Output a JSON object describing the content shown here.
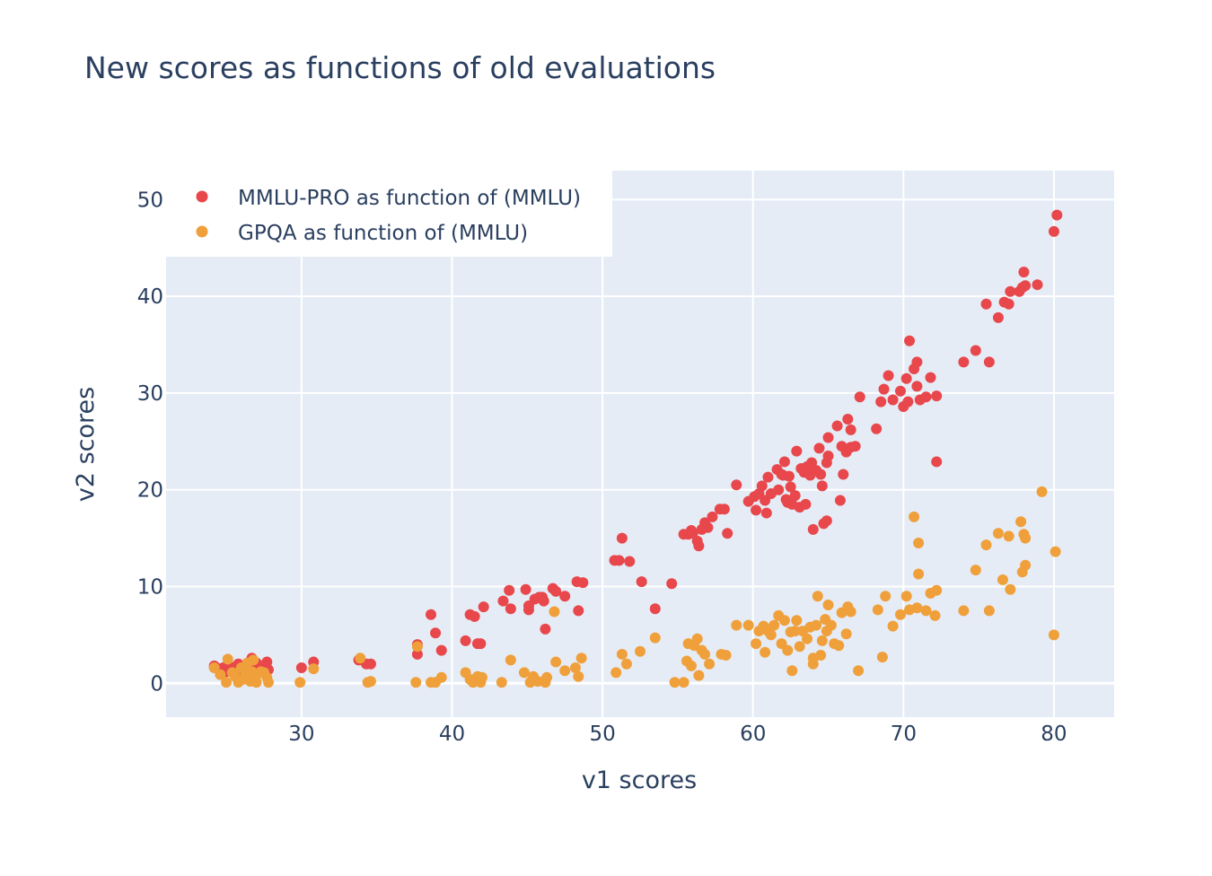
{
  "chart_data": {
    "type": "scatter",
    "title": "New scores as functions of old evaluations",
    "xlabel": "v1 scores",
    "ylabel": "v2 scores",
    "xlim": [
      21,
      84
    ],
    "ylim": [
      -3.5,
      53
    ],
    "xticks": [
      30,
      40,
      50,
      60,
      70,
      80
    ],
    "yticks": [
      0,
      10,
      20,
      30,
      40,
      50
    ],
    "grid": true,
    "legend_position": "top-left",
    "series": [
      {
        "name": "MMLU-PRO as function of (MMLU)",
        "color": "#e8474b",
        "points": [
          [
            24.2,
            1.8
          ],
          [
            24.6,
            1.5
          ],
          [
            24.8,
            1.6
          ],
          [
            25.0,
            1.2
          ],
          [
            25.1,
            1.9
          ],
          [
            25.3,
            1.4
          ],
          [
            25.6,
            1.7
          ],
          [
            25.8,
            2.0
          ],
          [
            26.0,
            1.3
          ],
          [
            26.2,
            1.6
          ],
          [
            26.4,
            1.9
          ],
          [
            26.6,
            2.3
          ],
          [
            26.7,
            2.6
          ],
          [
            26.8,
            1.5
          ],
          [
            27.0,
            2.1
          ],
          [
            27.2,
            1.8
          ],
          [
            27.5,
            1.4
          ],
          [
            27.7,
            2.2
          ],
          [
            27.8,
            1.4
          ],
          [
            30.0,
            1.6
          ],
          [
            30.8,
            2.2
          ],
          [
            33.8,
            2.4
          ],
          [
            34.3,
            2.0
          ],
          [
            34.6,
            2.0
          ],
          [
            37.7,
            4.0
          ],
          [
            37.7,
            3.0
          ],
          [
            38.6,
            7.1
          ],
          [
            38.9,
            5.2
          ],
          [
            39.3,
            3.4
          ],
          [
            40.9,
            4.4
          ],
          [
            41.2,
            7.1
          ],
          [
            41.5,
            6.9
          ],
          [
            41.7,
            4.1
          ],
          [
            41.9,
            4.1
          ],
          [
            42.1,
            7.9
          ],
          [
            43.4,
            8.5
          ],
          [
            43.8,
            9.6
          ],
          [
            43.9,
            7.7
          ],
          [
            44.9,
            9.7
          ],
          [
            45.1,
            7.6
          ],
          [
            45.1,
            8.0
          ],
          [
            45.5,
            8.7
          ],
          [
            45.8,
            8.9
          ],
          [
            46.0,
            8.9
          ],
          [
            46.1,
            8.5
          ],
          [
            46.2,
            5.6
          ],
          [
            46.7,
            9.8
          ],
          [
            46.9,
            9.5
          ],
          [
            47.5,
            9.0
          ],
          [
            48.3,
            10.5
          ],
          [
            48.4,
            7.5
          ],
          [
            48.7,
            10.4
          ],
          [
            50.8,
            12.7
          ],
          [
            51.1,
            12.7
          ],
          [
            51.3,
            15.0
          ],
          [
            51.8,
            12.6
          ],
          [
            52.6,
            10.5
          ],
          [
            53.5,
            7.7
          ],
          [
            54.6,
            10.3
          ],
          [
            55.4,
            15.4
          ],
          [
            55.7,
            15.4
          ],
          [
            55.9,
            15.8
          ],
          [
            56.0,
            15.5
          ],
          [
            56.3,
            14.7
          ],
          [
            56.4,
            14.2
          ],
          [
            56.6,
            15.9
          ],
          [
            56.8,
            16.6
          ],
          [
            57.0,
            16.1
          ],
          [
            57.3,
            17.2
          ],
          [
            57.8,
            18.0
          ],
          [
            58.1,
            18.0
          ],
          [
            58.3,
            15.5
          ],
          [
            58.9,
            20.5
          ],
          [
            59.7,
            18.8
          ],
          [
            60.1,
            19.3
          ],
          [
            60.2,
            17.9
          ],
          [
            60.4,
            19.6
          ],
          [
            60.6,
            20.4
          ],
          [
            60.8,
            18.9
          ],
          [
            60.9,
            17.6
          ],
          [
            61.0,
            21.3
          ],
          [
            61.2,
            19.6
          ],
          [
            61.6,
            22.1
          ],
          [
            61.7,
            20.0
          ],
          [
            61.9,
            21.6
          ],
          [
            62.0,
            21.5
          ],
          [
            62.1,
            22.9
          ],
          [
            62.2,
            19.0
          ],
          [
            62.3,
            18.7
          ],
          [
            62.4,
            21.4
          ],
          [
            62.5,
            20.3
          ],
          [
            62.6,
            18.5
          ],
          [
            62.8,
            19.4
          ],
          [
            62.9,
            24.0
          ],
          [
            63.1,
            18.2
          ],
          [
            63.2,
            22.2
          ],
          [
            63.4,
            21.8
          ],
          [
            63.5,
            18.5
          ],
          [
            63.6,
            22.4
          ],
          [
            63.8,
            21.5
          ],
          [
            63.9,
            22.8
          ],
          [
            64.0,
            15.9
          ],
          [
            64.2,
            22.0
          ],
          [
            64.4,
            24.3
          ],
          [
            64.5,
            21.6
          ],
          [
            64.6,
            20.4
          ],
          [
            64.7,
            16.5
          ],
          [
            64.9,
            16.8
          ],
          [
            64.9,
            22.8
          ],
          [
            65.0,
            23.5
          ],
          [
            65.0,
            25.4
          ],
          [
            65.6,
            26.6
          ],
          [
            65.8,
            18.9
          ],
          [
            65.9,
            24.5
          ],
          [
            66.0,
            21.6
          ],
          [
            66.2,
            23.9
          ],
          [
            66.3,
            27.3
          ],
          [
            66.5,
            24.4
          ],
          [
            66.5,
            26.2
          ],
          [
            66.8,
            24.5
          ],
          [
            67.1,
            29.6
          ],
          [
            68.2,
            26.3
          ],
          [
            68.5,
            29.1
          ],
          [
            68.7,
            30.4
          ],
          [
            69.0,
            31.8
          ],
          [
            69.3,
            29.3
          ],
          [
            69.8,
            30.2
          ],
          [
            70.0,
            28.6
          ],
          [
            70.2,
            31.5
          ],
          [
            70.3,
            29.1
          ],
          [
            70.4,
            35.4
          ],
          [
            70.7,
            32.5
          ],
          [
            70.9,
            33.2
          ],
          [
            70.9,
            30.7
          ],
          [
            71.1,
            29.3
          ],
          [
            71.5,
            29.6
          ],
          [
            71.8,
            31.6
          ],
          [
            72.2,
            22.9
          ],
          [
            72.2,
            29.7
          ],
          [
            74.0,
            33.2
          ],
          [
            74.8,
            34.4
          ],
          [
            75.5,
            39.2
          ],
          [
            75.7,
            33.2
          ],
          [
            76.3,
            37.8
          ],
          [
            76.7,
            39.4
          ],
          [
            77.0,
            39.2
          ],
          [
            77.1,
            40.5
          ],
          [
            77.7,
            40.5
          ],
          [
            77.9,
            40.9
          ],
          [
            78.0,
            42.5
          ],
          [
            78.1,
            41.1
          ],
          [
            78.9,
            41.2
          ],
          [
            80.0,
            46.7
          ],
          [
            80.2,
            48.4
          ]
        ]
      },
      {
        "name": "GPQA as function of (MMLU)",
        "color": "#f0a03b",
        "points": [
          [
            24.2,
            1.6
          ],
          [
            24.6,
            0.9
          ],
          [
            25.0,
            0.1
          ],
          [
            25.1,
            2.5
          ],
          [
            25.4,
            1.1
          ],
          [
            25.6,
            0.7
          ],
          [
            25.8,
            0.1
          ],
          [
            26.0,
            1.6
          ],
          [
            26.1,
            0.4
          ],
          [
            26.3,
            1.0
          ],
          [
            26.4,
            2.1
          ],
          [
            26.6,
            0.2
          ],
          [
            26.7,
            1.2
          ],
          [
            26.8,
            2.4
          ],
          [
            26.9,
            0.5
          ],
          [
            27.0,
            0.1
          ],
          [
            27.1,
            1.0
          ],
          [
            27.3,
            1.2
          ],
          [
            27.5,
            1.1
          ],
          [
            27.7,
            0.6
          ],
          [
            27.8,
            0.1
          ],
          [
            29.9,
            0.1
          ],
          [
            30.8,
            1.5
          ],
          [
            33.9,
            2.6
          ],
          [
            34.4,
            0.1
          ],
          [
            34.6,
            0.2
          ],
          [
            37.6,
            0.1
          ],
          [
            37.7,
            3.8
          ],
          [
            38.6,
            0.1
          ],
          [
            38.9,
            0.1
          ],
          [
            39.3,
            0.6
          ],
          [
            40.9,
            1.1
          ],
          [
            41.2,
            0.4
          ],
          [
            41.4,
            0.1
          ],
          [
            41.7,
            0.7
          ],
          [
            41.9,
            0.1
          ],
          [
            42.0,
            0.6
          ],
          [
            43.3,
            0.1
          ],
          [
            43.9,
            2.4
          ],
          [
            44.8,
            1.1
          ],
          [
            45.2,
            0.1
          ],
          [
            45.4,
            0.7
          ],
          [
            45.7,
            0.2
          ],
          [
            46.2,
            0.1
          ],
          [
            46.3,
            0.6
          ],
          [
            46.8,
            7.4
          ],
          [
            46.9,
            2.2
          ],
          [
            47.5,
            1.3
          ],
          [
            48.2,
            1.6
          ],
          [
            48.4,
            0.7
          ],
          [
            48.6,
            2.6
          ],
          [
            50.9,
            1.1
          ],
          [
            51.3,
            3.0
          ],
          [
            51.6,
            2.0
          ],
          [
            52.5,
            3.3
          ],
          [
            53.5,
            4.7
          ],
          [
            54.8,
            0.1
          ],
          [
            55.4,
            0.1
          ],
          [
            55.6,
            2.3
          ],
          [
            55.7,
            4.1
          ],
          [
            55.9,
            1.8
          ],
          [
            56.1,
            3.9
          ],
          [
            56.3,
            4.6
          ],
          [
            56.4,
            0.8
          ],
          [
            56.6,
            3.4
          ],
          [
            56.8,
            3.0
          ],
          [
            57.1,
            2.0
          ],
          [
            57.9,
            3.0
          ],
          [
            58.2,
            2.9
          ],
          [
            58.9,
            6.0
          ],
          [
            59.7,
            6.0
          ],
          [
            60.2,
            4.1
          ],
          [
            60.4,
            5.4
          ],
          [
            60.7,
            5.9
          ],
          [
            60.8,
            3.2
          ],
          [
            61.0,
            5.4
          ],
          [
            61.2,
            5.0
          ],
          [
            61.4,
            6.0
          ],
          [
            61.7,
            7.0
          ],
          [
            61.9,
            4.1
          ],
          [
            62.1,
            6.5
          ],
          [
            62.3,
            3.4
          ],
          [
            62.5,
            5.3
          ],
          [
            62.6,
            1.3
          ],
          [
            62.8,
            5.4
          ],
          [
            62.9,
            6.5
          ],
          [
            63.1,
            3.8
          ],
          [
            63.3,
            5.4
          ],
          [
            63.6,
            4.6
          ],
          [
            63.8,
            5.8
          ],
          [
            64.0,
            2.6
          ],
          [
            64.0,
            2.0
          ],
          [
            64.2,
            6.0
          ],
          [
            64.3,
            9.0
          ],
          [
            64.5,
            2.9
          ],
          [
            64.6,
            4.4
          ],
          [
            64.8,
            6.6
          ],
          [
            64.9,
            5.4
          ],
          [
            65.0,
            8.1
          ],
          [
            65.2,
            6.0
          ],
          [
            65.4,
            4.1
          ],
          [
            65.7,
            3.9
          ],
          [
            65.9,
            7.3
          ],
          [
            66.2,
            5.1
          ],
          [
            66.3,
            7.9
          ],
          [
            66.5,
            7.4
          ],
          [
            67.0,
            1.3
          ],
          [
            68.3,
            7.6
          ],
          [
            68.6,
            2.7
          ],
          [
            68.8,
            9.0
          ],
          [
            69.3,
            5.9
          ],
          [
            69.8,
            7.1
          ],
          [
            70.2,
            9.0
          ],
          [
            70.4,
            7.6
          ],
          [
            70.7,
            17.2
          ],
          [
            70.9,
            7.8
          ],
          [
            71.0,
            14.5
          ],
          [
            71.0,
            11.3
          ],
          [
            71.5,
            7.5
          ],
          [
            71.8,
            9.3
          ],
          [
            72.2,
            9.6
          ],
          [
            72.1,
            7.0
          ],
          [
            74.0,
            7.5
          ],
          [
            74.8,
            11.7
          ],
          [
            75.5,
            14.3
          ],
          [
            75.7,
            7.5
          ],
          [
            76.3,
            15.5
          ],
          [
            76.6,
            10.7
          ],
          [
            77.0,
            15.2
          ],
          [
            77.1,
            9.7
          ],
          [
            77.8,
            16.7
          ],
          [
            77.9,
            11.5
          ],
          [
            78.0,
            15.4
          ],
          [
            78.1,
            12.2
          ],
          [
            78.1,
            15.0
          ],
          [
            79.2,
            19.8
          ],
          [
            80.0,
            5.0
          ],
          [
            80.1,
            13.6
          ]
        ]
      }
    ]
  }
}
